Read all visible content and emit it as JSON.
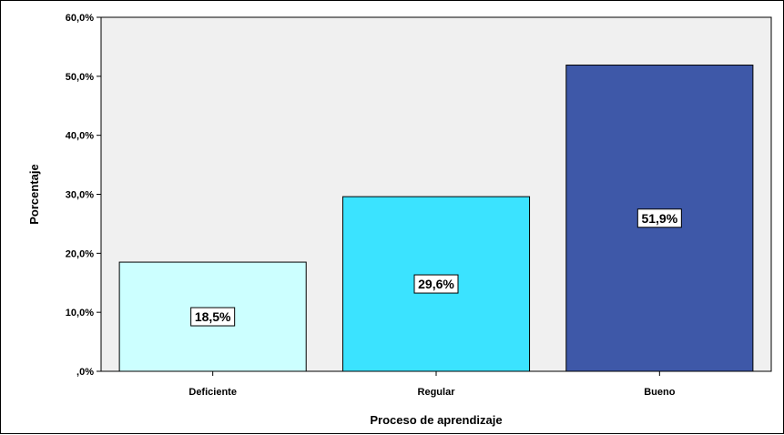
{
  "chart_data": {
    "type": "bar",
    "title": "",
    "xlabel": "Proceso de aprendizaje",
    "ylabel": "Porcentaje",
    "categories": [
      "Deficiente",
      "Regular",
      "Bueno"
    ],
    "values": [
      18.5,
      29.6,
      51.9
    ],
    "data_labels": [
      "18,5%",
      "29,6%",
      "51,9%"
    ],
    "bar_colors": [
      "#ccffff",
      "#3be3ff",
      "#3e58a8"
    ],
    "plot_background": "#f0f0f0",
    "ylim": [
      0,
      60
    ],
    "yticks": [
      0,
      10,
      20,
      30,
      40,
      50,
      60
    ],
    "ytick_labels": [
      ",0%",
      "10,0%",
      "20,0%",
      "30,0%",
      "40,0%",
      "50,0%",
      "60,0%"
    ],
    "grid": false,
    "legend": "none"
  }
}
